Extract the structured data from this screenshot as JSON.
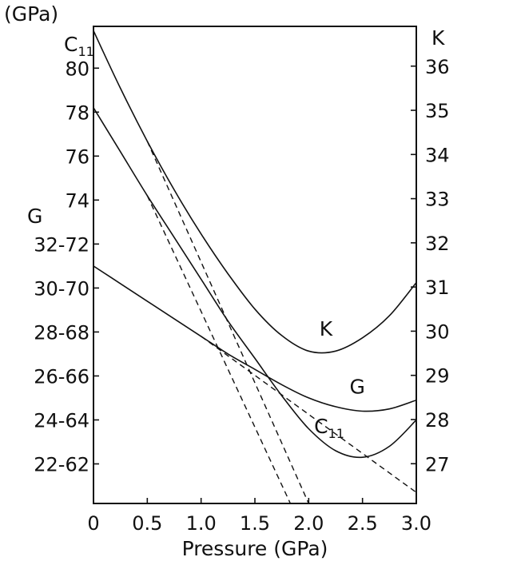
{
  "chart_data": {
    "type": "line",
    "xlabel": "Pressure (GPa)",
    "xlim": [
      0,
      3.0
    ],
    "x_ticks": [
      "0",
      "0.5",
      "1.0",
      "1.5",
      "2.0",
      "2.5",
      "3.0"
    ],
    "x_tick_values": [
      0,
      0.5,
      1.0,
      1.5,
      2.0,
      2.5,
      3.0
    ],
    "left_axis": {
      "unit_label": "(GPa)",
      "c11_label": "C",
      "c11_subscript": "11",
      "g_label": "G",
      "c11_range": [
        60.2,
        81.9
      ],
      "g_range": [
        20.2,
        41.9
      ],
      "tick_values": [
        62,
        64,
        66,
        68,
        70,
        72,
        74,
        76,
        78,
        80
      ],
      "tick_labels": [
        "22-62",
        "24-64",
        "26-66",
        "28-68",
        "30-70",
        "32-72",
        "74",
        "76",
        "78",
        "80"
      ]
    },
    "right_axis": {
      "label": "K",
      "range": [
        26.1,
        36.9
      ],
      "tick_values": [
        27,
        28,
        29,
        30,
        31,
        32,
        33,
        34,
        35,
        36
      ],
      "tick_labels": [
        "27",
        "28",
        "29",
        "30",
        "31",
        "32",
        "33",
        "34",
        "35",
        "36"
      ]
    },
    "grid": false,
    "series": [
      {
        "name": "K",
        "axis": "right",
        "style": "solid",
        "x": [
          0,
          0.25,
          0.5,
          0.75,
          1.0,
          1.25,
          1.5,
          1.75,
          2.0,
          2.25,
          2.5,
          2.75,
          3.0
        ],
        "y": [
          36.8,
          35.5,
          34.3,
          33.2,
          32.2,
          31.3,
          30.5,
          29.9,
          29.55,
          29.55,
          29.85,
          30.35,
          31.1
        ]
      },
      {
        "name": "G",
        "axis": "left",
        "style": "solid",
        "x": [
          0,
          0.25,
          0.5,
          0.75,
          1.0,
          1.25,
          1.5,
          1.75,
          2.0,
          2.25,
          2.5,
          2.75,
          3.0
        ],
        "y": [
          31.0,
          30.2,
          29.4,
          28.6,
          27.8,
          27.0,
          26.3,
          25.6,
          25.0,
          24.6,
          24.4,
          24.5,
          24.9
        ]
      },
      {
        "name": "C11",
        "axis": "left",
        "style": "solid",
        "x": [
          0,
          0.25,
          0.5,
          0.75,
          1.0,
          1.25,
          1.5,
          1.75,
          2.0,
          2.25,
          2.5,
          2.75,
          3.0
        ],
        "y": [
          78.2,
          76.2,
          74.2,
          72.3,
          70.4,
          68.5,
          66.8,
          65.1,
          63.6,
          62.6,
          62.3,
          62.8,
          64.0
        ]
      },
      {
        "name": "K extrapolation",
        "axis": "right",
        "style": "dashed",
        "x": [
          0.5,
          2.0
        ],
        "y": [
          34.3,
          26.1
        ]
      },
      {
        "name": "C11 extrapolation",
        "axis": "left",
        "style": "dashed",
        "x": [
          0.5,
          1.83
        ],
        "y": [
          74.2,
          60.2
        ]
      },
      {
        "name": "G extrapolation",
        "axis": "left",
        "style": "dashed",
        "x": [
          1.0,
          3.0
        ],
        "y": [
          27.8,
          20.7
        ]
      }
    ],
    "curve_labels": [
      {
        "text": "K",
        "x": 2.1,
        "y_axis": "right",
        "y": 29.9
      },
      {
        "text": "G",
        "x": 2.38,
        "y_axis": "left",
        "y": 25.2
      },
      {
        "text": "C",
        "sub": "11",
        "x": 2.05,
        "y_axis": "left",
        "y": 63.4
      }
    ]
  }
}
